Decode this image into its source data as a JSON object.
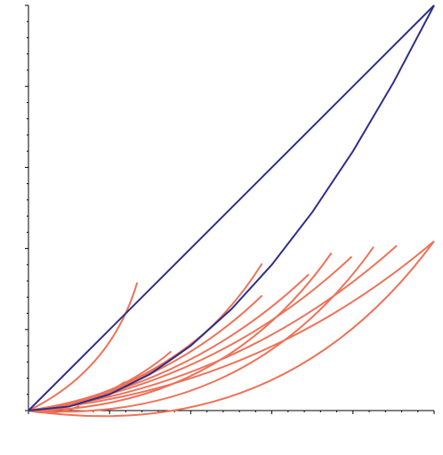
{
  "chart_data": {
    "type": "line",
    "title": "",
    "xlabel": "",
    "ylabel": "",
    "xlim": [
      0,
      1
    ],
    "ylim": [
      0,
      1
    ],
    "grid": false,
    "colors": {
      "boundary": "#2e2f8a",
      "family": "#ee7258",
      "axis": "#000000"
    },
    "boundary_series": [
      {
        "x": [
          0,
          1
        ],
        "y": [
          0,
          1
        ]
      },
      {
        "x": [
          0,
          0.1,
          0.2,
          0.3,
          0.4,
          0.5,
          0.6,
          0.7,
          0.8,
          0.9,
          1
        ],
        "y": [
          0,
          0.01,
          0.04,
          0.09,
          0.16,
          0.25,
          0.36,
          0.49,
          0.64,
          0.81,
          1
        ]
      }
    ],
    "family_a": {
      "description_free": true,
      "endpoints": [
        [
          0.126,
          0.011
        ],
        [
          0.238,
          0.071
        ],
        [
          0.352,
          0.146
        ],
        [
          0.463,
          0.217
        ],
        [
          0.576,
          0.284
        ],
        [
          0.691,
          0.336
        ],
        [
          0.797,
          0.38
        ],
        [
          0.908,
          0.407
        ],
        [
          1.0,
          0.418
        ]
      ],
      "peak_frac": [
        0.3,
        0.3,
        0.3,
        0.3,
        0.3,
        0.3,
        0.3,
        0.3,
        0.3
      ]
    },
    "family_b": {
      "endpoints": [
        [
          0.268,
          0.316
        ],
        [
          0.576,
          0.363
        ],
        [
          0.747,
          0.389
        ],
        [
          0.851,
          0.404
        ],
        [
          1.0,
          0.418
        ]
      ]
    }
  }
}
